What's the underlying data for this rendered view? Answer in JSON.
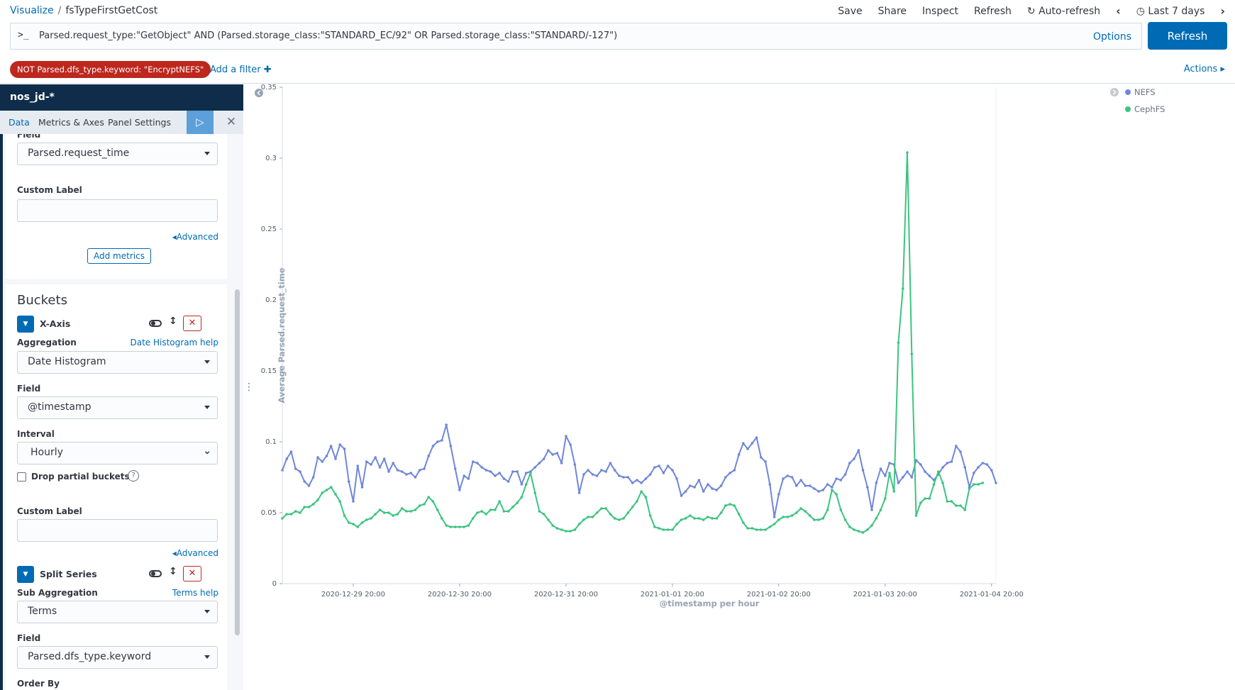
{
  "breadcrumb": {
    "root": "Visualize",
    "separator": "/",
    "current": "fsTypeFirstGetCost"
  },
  "top_menu": {
    "save": "Save",
    "share": "Share",
    "inspect": "Inspect",
    "refresh": "Refresh",
    "auto_refresh": "Auto-refresh",
    "time_range": "Last 7 days"
  },
  "query": {
    "prompt": ">_",
    "text": "Parsed.request_type:\"GetObject\" AND (Parsed.storage_class:\"STANDARD_EC/92\" OR Parsed.storage_class:\"STANDARD/-127\")",
    "options_label": "Options",
    "refresh_button": "Refresh"
  },
  "filters": {
    "pills": [
      "NOT Parsed.dfs_type.keyword: \"EncryptNEFS\""
    ],
    "add_filter": "Add a filter",
    "actions": "Actions"
  },
  "sidebar": {
    "index_pattern": "nos_jd-*",
    "tabs": [
      "Data",
      "Metrics & Axes",
      "Panel Settings"
    ],
    "metrics": {
      "field_label": "Field",
      "field_value": "Parsed.request_time",
      "custom_label": "Custom Label",
      "custom_value": "",
      "advanced": "Advanced",
      "add_metrics": "Add metrics"
    },
    "buckets": {
      "title": "Buckets",
      "x_axis": {
        "title": "X-Axis",
        "aggregation_label": "Aggregation",
        "help": "Date Histogram help",
        "aggregation_value": "Date Histogram",
        "field_label": "Field",
        "field_value": "@timestamp",
        "interval_label": "Interval",
        "interval_value": "Hourly",
        "drop_partial": "Drop partial buckets",
        "drop_partial_checked": false,
        "custom_label": "Custom Label",
        "custom_value": "",
        "advanced": "Advanced"
      },
      "split_series": {
        "title": "Split Series",
        "sub_aggregation_label": "Sub Aggregation",
        "help": "Terms help",
        "sub_aggregation_value": "Terms",
        "field_label": "Field",
        "field_value": "Parsed.dfs_type.keyword",
        "order_by_label": "Order By"
      }
    }
  },
  "colors": {
    "accent": "#006bb4",
    "header_dark": "#0f2d4a",
    "filter_negated": "#bd271e",
    "nefs": "#6f87d8",
    "cephfs": "#3cc480"
  },
  "chart_data": {
    "type": "line",
    "title": "",
    "xlabel": "@timestamp per hour",
    "ylabel": "Average Parsed.request_time",
    "ylim": [
      0,
      0.35
    ],
    "yticks": [
      0,
      0.05,
      0.1,
      0.15,
      0.2,
      0.25,
      0.3,
      0.35
    ],
    "ytick_labels": [
      "0",
      "0.05",
      "0.1",
      "0.15",
      "0.2",
      "0.25",
      "0.3",
      "0.35"
    ],
    "x_start": "2020-12-29 04:00",
    "x_interval": "1 hour",
    "xtick_labels": [
      "2020-12-29 20:00",
      "2020-12-30 20:00",
      "2020-12-31 20:00",
      "2021-01-01 20:00",
      "2021-01-02 20:00",
      "2021-01-03 20:00",
      "2021-01-04 20:00"
    ],
    "xticks_hour_index": [
      16,
      40,
      64,
      88,
      112,
      136,
      160
    ],
    "legend_position": "top-right",
    "grid": false,
    "series": [
      {
        "name": "NEFS",
        "color": "#6f87d8",
        "values": [
          0.08,
          0.088,
          0.093,
          0.081,
          0.079,
          0.072,
          0.069,
          0.075,
          0.089,
          0.086,
          0.09,
          0.097,
          0.088,
          0.098,
          0.095,
          0.072,
          0.058,
          0.083,
          0.068,
          0.086,
          0.084,
          0.089,
          0.082,
          0.088,
          0.079,
          0.085,
          0.08,
          0.079,
          0.077,
          0.078,
          0.075,
          0.08,
          0.081,
          0.09,
          0.097,
          0.1,
          0.101,
          0.112,
          0.097,
          0.081,
          0.066,
          0.076,
          0.074,
          0.086,
          0.085,
          0.082,
          0.08,
          0.079,
          0.076,
          0.078,
          0.074,
          0.072,
          0.079,
          0.079,
          0.07,
          0.078,
          0.079,
          0.082,
          0.085,
          0.088,
          0.094,
          0.091,
          0.092,
          0.085,
          0.104,
          0.098,
          0.084,
          0.064,
          0.077,
          0.08,
          0.077,
          0.076,
          0.08,
          0.079,
          0.085,
          0.08,
          0.076,
          0.075,
          0.075,
          0.071,
          0.073,
          0.071,
          0.074,
          0.077,
          0.082,
          0.083,
          0.078,
          0.083,
          0.08,
          0.074,
          0.062,
          0.065,
          0.069,
          0.068,
          0.073,
          0.065,
          0.07,
          0.067,
          0.066,
          0.069,
          0.075,
          0.078,
          0.08,
          0.091,
          0.099,
          0.095,
          0.099,
          0.103,
          0.089,
          0.086,
          0.07,
          0.047,
          0.063,
          0.074,
          0.076,
          0.075,
          0.069,
          0.073,
          0.069,
          0.069,
          0.067,
          0.065,
          0.066,
          0.07,
          0.068,
          0.074,
          0.073,
          0.077,
          0.085,
          0.088,
          0.094,
          0.08,
          0.068,
          0.052,
          0.071,
          0.081,
          0.076,
          0.085,
          0.084,
          0.071,
          0.075,
          0.079,
          0.075,
          0.087,
          0.084,
          0.079,
          0.076,
          0.073,
          0.077,
          0.082,
          0.085,
          0.086,
          0.097,
          0.093,
          0.082,
          0.068,
          0.078,
          0.082,
          0.085,
          0.084,
          0.08,
          0.071
        ]
      },
      {
        "name": "CephFS",
        "color": "#3cc480",
        "values": [
          0.046,
          0.049,
          0.049,
          0.051,
          0.05,
          0.054,
          0.054,
          0.056,
          0.059,
          0.064,
          0.066,
          0.068,
          0.063,
          0.058,
          0.048,
          0.043,
          0.042,
          0.04,
          0.043,
          0.045,
          0.046,
          0.049,
          0.052,
          0.05,
          0.05,
          0.048,
          0.049,
          0.053,
          0.051,
          0.051,
          0.052,
          0.055,
          0.056,
          0.061,
          0.058,
          0.052,
          0.046,
          0.041,
          0.04,
          0.04,
          0.04,
          0.04,
          0.041,
          0.046,
          0.05,
          0.051,
          0.049,
          0.052,
          0.052,
          0.058,
          0.051,
          0.051,
          0.054,
          0.057,
          0.061,
          0.07,
          0.078,
          0.064,
          0.051,
          0.049,
          0.045,
          0.041,
          0.039,
          0.038,
          0.037,
          0.037,
          0.038,
          0.042,
          0.045,
          0.047,
          0.047,
          0.05,
          0.053,
          0.053,
          0.049,
          0.046,
          0.045,
          0.046,
          0.05,
          0.054,
          0.058,
          0.065,
          0.061,
          0.048,
          0.04,
          0.039,
          0.038,
          0.038,
          0.038,
          0.042,
          0.045,
          0.046,
          0.048,
          0.046,
          0.046,
          0.045,
          0.047,
          0.046,
          0.046,
          0.05,
          0.055,
          0.056,
          0.055,
          0.049,
          0.043,
          0.039,
          0.039,
          0.038,
          0.038,
          0.038,
          0.04,
          0.042,
          0.045,
          0.047,
          0.047,
          0.048,
          0.05,
          0.053,
          0.051,
          0.048,
          0.045,
          0.045,
          0.046,
          0.052,
          0.066,
          0.063,
          0.052,
          0.045,
          0.04,
          0.038,
          0.037,
          0.036,
          0.038,
          0.041,
          0.046,
          0.052,
          0.06,
          0.078,
          0.065,
          0.17,
          0.208,
          0.304,
          0.162,
          0.048,
          0.057,
          0.06,
          0.06,
          0.07,
          0.079,
          0.071,
          0.058,
          0.058,
          0.055,
          0.055,
          0.052,
          0.067,
          0.07,
          0.07,
          0.071
        ]
      }
    ]
  }
}
